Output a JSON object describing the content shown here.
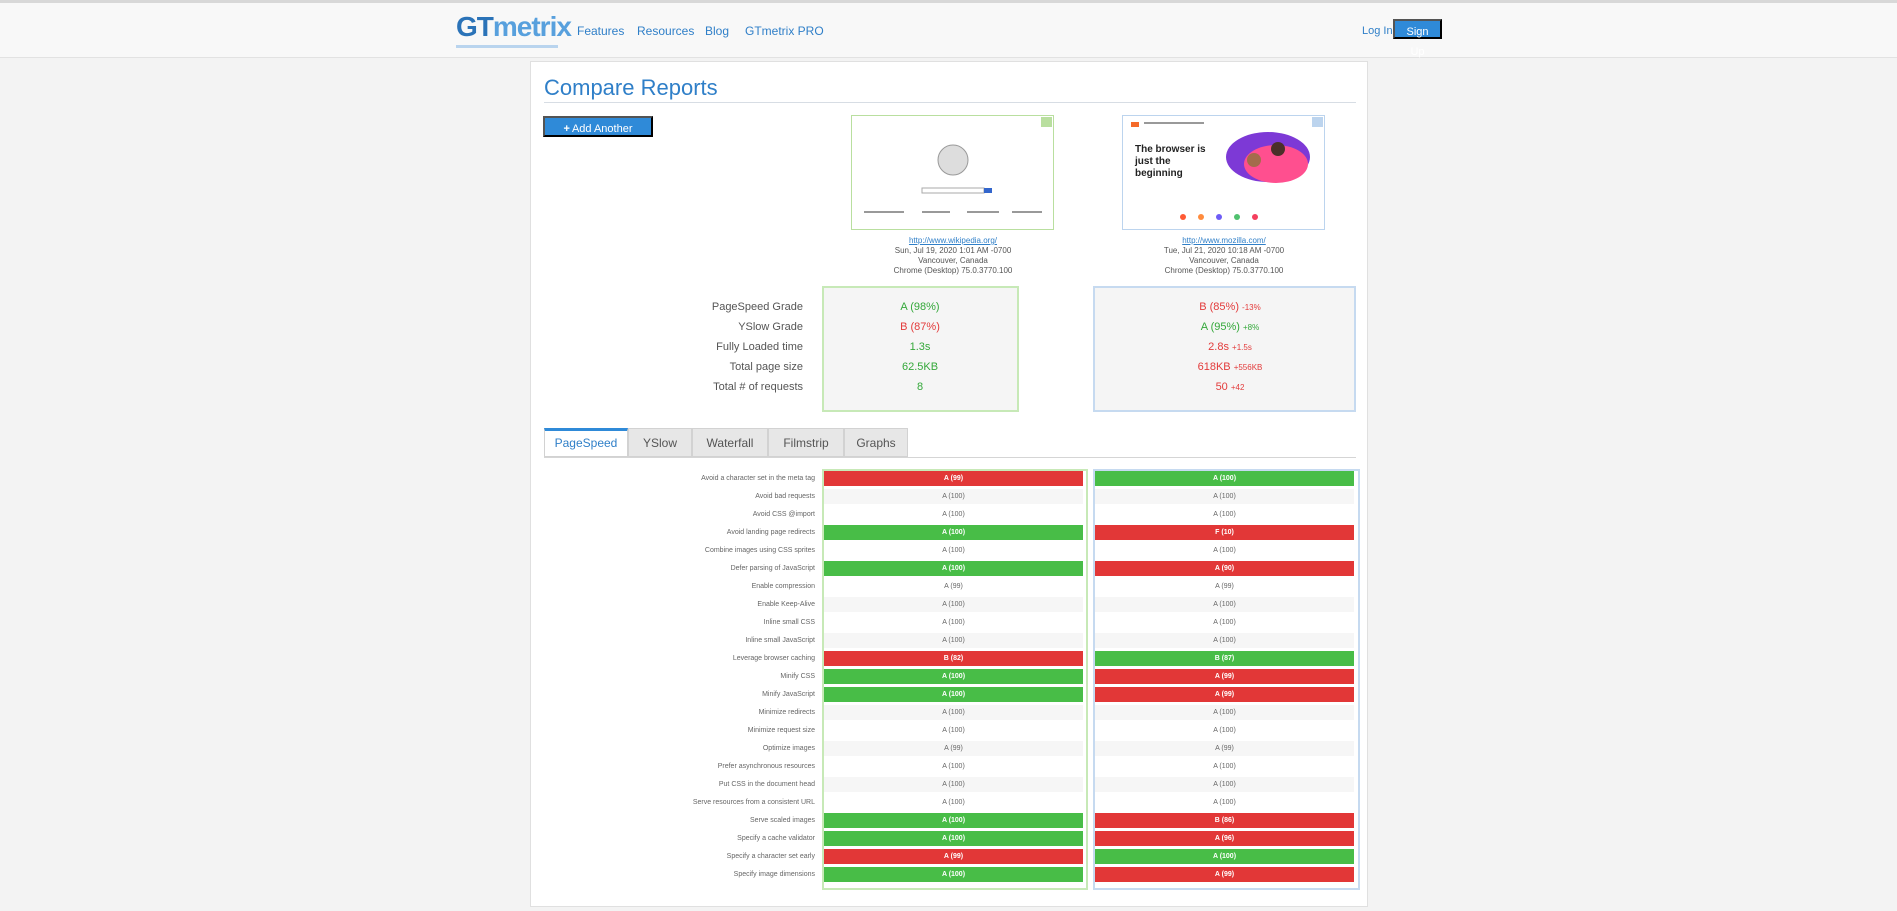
{
  "header": {
    "logo_main": "GT",
    "logo_accent": "metrix",
    "nav": [
      "Features",
      "Resources",
      "Blog",
      "GTmetrix PRO"
    ],
    "login": "Log In",
    "signup": "Sign Up"
  },
  "page": {
    "title": "Compare Reports",
    "add_url": "Add Another URL"
  },
  "reports": [
    {
      "url": "http://www.wikipedia.org/",
      "date": "Sun, Jul 19, 2020 1:01 AM -0700",
      "location": "Vancouver, Canada",
      "browser": "Chrome (Desktop) 75.0.3770.100"
    },
    {
      "url": "http://www.mozilla.com/",
      "date": "Tue, Jul 21, 2020 10:18 AM -0700",
      "location": "Vancouver, Canada",
      "browser": "Chrome (Desktop) 75.0.3770.100"
    }
  ],
  "summary": {
    "labels": [
      "PageSpeed Grade",
      "YSlow Grade",
      "Fully Loaded time",
      "Total page size",
      "Total # of requests"
    ],
    "wiki": [
      "A (98%)",
      "B (87%)",
      "1.3s",
      "62.5KB",
      "8"
    ],
    "moz": [
      "B (85%)",
      "A (95%)",
      "2.8s",
      "618KB",
      "50"
    ],
    "moz_deltas": [
      "-13%",
      "+8%",
      "+1.5s",
      "+556KB",
      "+42"
    ],
    "wiki_colors": [
      "green",
      "red",
      "green",
      "green",
      "green"
    ],
    "moz_colors": [
      "red",
      "green",
      "red",
      "red",
      "red"
    ]
  },
  "tabs": [
    "PageSpeed",
    "YSlow",
    "Waterfall",
    "Filmstrip",
    "Graphs"
  ],
  "rules": [
    "Avoid a character set in the meta tag",
    "Avoid bad requests",
    "Avoid CSS @import",
    "Avoid landing page redirects",
    "Combine images using CSS sprites",
    "Defer parsing of JavaScript",
    "Enable compression",
    "Enable Keep-Alive",
    "Inline small CSS",
    "Inline small JavaScript",
    "Leverage browser caching",
    "Minify CSS",
    "Minify JavaScript",
    "Minimize redirects",
    "Minimize request size",
    "Optimize images",
    "Prefer asynchronous resources",
    "Put CSS in the document head",
    "Serve resources from a consistent URL",
    "Serve scaled images",
    "Specify a cache validator",
    "Specify a character set early",
    "Specify image dimensions"
  ],
  "wiki_scores": [
    "A (99)",
    "A (100)",
    "A (100)",
    "A (100)",
    "A (100)",
    "A (100)",
    "A (99)",
    "A (100)",
    "A (100)",
    "A (100)",
    "B (82)",
    "A (100)",
    "A (100)",
    "A (100)",
    "A (100)",
    "A (99)",
    "A (100)",
    "A (100)",
    "A (100)",
    "A (100)",
    "A (100)",
    "A (99)",
    "A (100)"
  ],
  "moz_scores": [
    "A (100)",
    "A (100)",
    "A (100)",
    "F (10)",
    "A (100)",
    "A (90)",
    "A (99)",
    "A (100)",
    "A (100)",
    "A (100)",
    "B (87)",
    "A (99)",
    "A (99)",
    "A (100)",
    "A (100)",
    "A (99)",
    "A (100)",
    "A (100)",
    "A (100)",
    "B (86)",
    "A (96)",
    "A (100)",
    "A (99)"
  ],
  "wiki_states": [
    "red",
    "neutral",
    "neutral",
    "green",
    "neutral",
    "green",
    "neutral",
    "neutral",
    "neutral",
    "neutral",
    "red",
    "green",
    "green",
    "neutral",
    "neutral",
    "neutral",
    "neutral",
    "neutral",
    "neutral",
    "green",
    "green",
    "red",
    "green"
  ],
  "moz_states": [
    "green",
    "neutral",
    "neutral",
    "red",
    "neutral",
    "red",
    "neutral",
    "neutral",
    "neutral",
    "neutral",
    "green",
    "red",
    "red",
    "neutral",
    "neutral",
    "neutral",
    "neutral",
    "neutral",
    "neutral",
    "red",
    "red",
    "green",
    "red"
  ]
}
